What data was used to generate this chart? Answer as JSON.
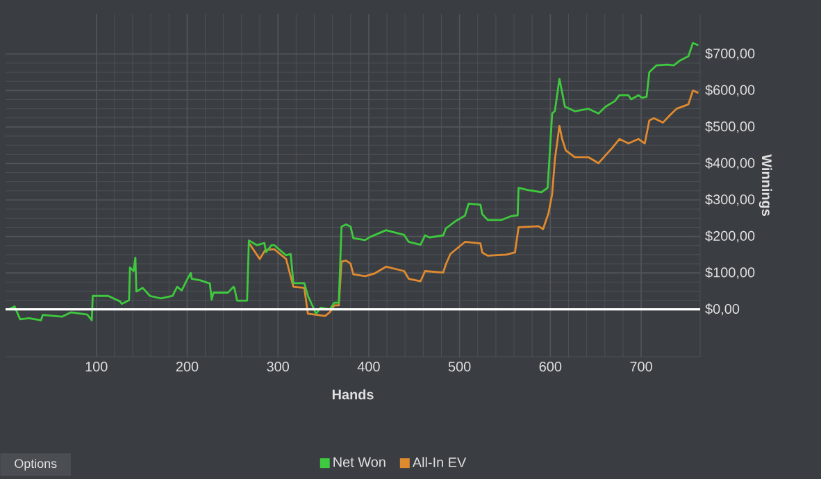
{
  "chart_data": {
    "type": "line",
    "xlabel": "Hands",
    "ylabel": "Winnings",
    "xlim": [
      0,
      765
    ],
    "ylim": [
      -130,
      810
    ],
    "xticks": [
      100,
      200,
      300,
      400,
      500,
      600,
      700
    ],
    "yticks": [
      {
        "value": 0,
        "label": "$0,00"
      },
      {
        "value": 100,
        "label": "$100,00"
      },
      {
        "value": 200,
        "label": "$200,00"
      },
      {
        "value": 300,
        "label": "$300,00"
      },
      {
        "value": 400,
        "label": "$400,00"
      },
      {
        "value": 500,
        "label": "$500,00"
      },
      {
        "value": 600,
        "label": "$600,00"
      },
      {
        "value": 700,
        "label": "$700,00"
      }
    ],
    "grid": true,
    "legend": "bottom",
    "marker": "none",
    "line_style": "solid",
    "ref_lines": [
      {
        "axis": "y",
        "value": 0,
        "label": null,
        "color": "#ffffff"
      }
    ],
    "annotations": [
      "Options"
    ],
    "series": [
      {
        "name": "Net Won",
        "color": "#3ec93e",
        "x": [
          3,
          10,
          16,
          26,
          39,
          41,
          62,
          72,
          90,
          95,
          96,
          113,
          126,
          128,
          136,
          137,
          141,
          143,
          144,
          151,
          159,
          171,
          184,
          189,
          194,
          199,
          204,
          205,
          214,
          225,
          227,
          229,
          245,
          251,
          252,
          255,
          266,
          268,
          277,
          285,
          287,
          293,
          296,
          309,
          314,
          317,
          329,
          333,
          342,
          347,
          357,
          362,
          367,
          370,
          375,
          380,
          383,
          396,
          401,
          419,
          439,
          444,
          457,
          462,
          467,
          482,
          485,
          495,
          506,
          510,
          523,
          525,
          531,
          546,
          556,
          564,
          565,
          576,
          590,
          597,
          602,
          605,
          610,
          612,
          616,
          627,
          642,
          653,
          661,
          671,
          676,
          686,
          689,
          697,
          701,
          706,
          709,
          717,
          729,
          736,
          742,
          752,
          757,
          763
        ],
        "values": [
          0,
          8,
          -27,
          -24,
          -30,
          -15,
          -20,
          -8,
          -14,
          -30,
          37,
          37,
          22,
          15,
          25,
          115,
          105,
          142,
          49,
          59,
          37,
          30,
          37,
          62,
          52,
          77,
          100,
          84,
          80,
          71,
          27,
          46,
          46,
          62,
          59,
          24,
          24,
          189,
          176,
          182,
          157,
          176,
          176,
          148,
          152,
          72,
          72,
          37,
          -12,
          5,
          0,
          18,
          18,
          227,
          233,
          227,
          195,
          190,
          198,
          217,
          204,
          185,
          177,
          203,
          197,
          203,
          222,
          241,
          257,
          290,
          287,
          261,
          245,
          245,
          255,
          258,
          333,
          327,
          321,
          333,
          537,
          544,
          632,
          607,
          556,
          543,
          550,
          537,
          556,
          571,
          587,
          587,
          576,
          587,
          580,
          583,
          650,
          669,
          671,
          669,
          681,
          694,
          730,
          724
        ]
      },
      {
        "name": "All-In EV",
        "color": "#e08a30",
        "x": [
          268,
          280,
          286,
          296,
          309,
          317,
          329,
          333,
          352,
          357,
          362,
          367,
          370,
          375,
          380,
          383,
          396,
          406,
          419,
          439,
          444,
          457,
          462,
          482,
          485,
          490,
          506,
          523,
          525,
          531,
          551,
          561,
          565,
          587,
          592,
          598,
          602,
          605,
          610,
          613,
          617,
          627,
          642,
          653,
          661,
          668,
          676,
          686,
          697,
          704,
          709,
          714,
          724,
          732,
          739,
          752,
          757,
          763
        ],
        "values": [
          182,
          138,
          163,
          165,
          138,
          62,
          59,
          -12,
          -18,
          -8,
          11,
          11,
          131,
          134,
          125,
          96,
          91,
          98,
          117,
          105,
          84,
          77,
          105,
          101,
          124,
          152,
          185,
          181,
          156,
          147,
          150,
          156,
          225,
          228,
          220,
          264,
          316,
          411,
          503,
          467,
          436,
          417,
          417,
          401,
          423,
          442,
          467,
          455,
          467,
          455,
          518,
          524,
          512,
          533,
          550,
          562,
          600,
          593
        ]
      }
    ]
  }
}
